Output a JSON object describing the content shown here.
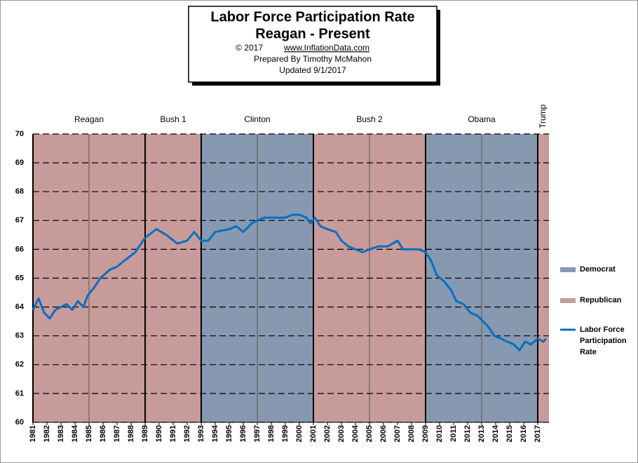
{
  "chart_data": {
    "type": "line",
    "title": "Labor Force Participation Rate",
    "subtitle": "Reagan - Present",
    "copyright": "© 2017",
    "website": "www.InflationData.com",
    "credit": "Prepared By Timothy McMahon",
    "updated": "Updated 9/1/2017",
    "presidents": [
      {
        "name": "Reagan",
        "party": "Republican",
        "start": 1981
      },
      {
        "name": "Bush 1",
        "party": "Republican",
        "start": 1989
      },
      {
        "name": "Clinton",
        "party": "Democrat",
        "start": 1993
      },
      {
        "name": "Bush 2",
        "party": "Republican",
        "start": 2001
      },
      {
        "name": "Obama",
        "party": "Democrat",
        "start": 2009
      },
      {
        "name": "Trump",
        "party": "Republican",
        "start": 2017
      }
    ],
    "term_lines": [
      1985,
      1997,
      2005,
      2013
    ],
    "parties": [
      {
        "name": "Democrat",
        "color": "#8799b0"
      },
      {
        "name": "Republican",
        "color": "#c89b9b"
      }
    ],
    "x": [
      1981.0,
      1981.4,
      1981.8,
      1982.2,
      1982.6,
      1983.0,
      1983.4,
      1983.8,
      1984.2,
      1984.6,
      1984.9,
      1985.4,
      1985.8,
      1986.5,
      1987.0,
      1987.5,
      1988.3,
      1989.0,
      1989.8,
      1990.5,
      1991.3,
      1992.0,
      1992.5,
      1993.0,
      1993.5,
      1994.0,
      1995.0,
      1995.5,
      1996.0,
      1996.6,
      1997.0,
      1997.5,
      1998.0,
      1999.0,
      1999.5,
      2000.0,
      2000.5,
      2000.8,
      2001.1,
      2001.5,
      2002.0,
      2002.6,
      2003.0,
      2003.5,
      2004.0,
      2004.5,
      2005.0,
      2005.6,
      2006.3,
      2007.0,
      2007.4,
      2008.0,
      2008.5,
      2009.0,
      2009.4,
      2009.8,
      2010.3,
      2010.8,
      2011.2,
      2011.7,
      2012.2,
      2012.7,
      2013.1,
      2013.5,
      2013.9,
      2014.4,
      2014.8,
      2015.3,
      2015.7,
      2016.1,
      2016.5,
      2017.0,
      2017.4,
      2017.6
    ],
    "series": [
      {
        "name": "Labor Force Participation Rate",
        "color": "#0070c0",
        "values": [
          63.9,
          64.3,
          63.8,
          63.6,
          63.9,
          64.0,
          64.1,
          63.9,
          64.2,
          64.0,
          64.4,
          64.7,
          65.0,
          65.3,
          65.4,
          65.6,
          65.9,
          66.4,
          66.7,
          66.5,
          66.2,
          66.3,
          66.6,
          66.3,
          66.3,
          66.6,
          66.7,
          66.8,
          66.6,
          66.9,
          67.0,
          67.1,
          67.1,
          67.1,
          67.2,
          67.2,
          67.1,
          66.9,
          67.1,
          66.8,
          66.7,
          66.6,
          66.3,
          66.1,
          66.0,
          65.9,
          66.0,
          66.1,
          66.1,
          66.3,
          66.0,
          66.0,
          66.0,
          65.9,
          65.6,
          65.1,
          64.9,
          64.6,
          64.2,
          64.1,
          63.8,
          63.7,
          63.5,
          63.3,
          63.0,
          62.9,
          62.8,
          62.7,
          62.5,
          62.8,
          62.7,
          62.9,
          62.8,
          62.9
        ]
      }
    ],
    "xlim": [
      1981,
      2017.8
    ],
    "xticks": [
      1981,
      1982,
      1983,
      1984,
      1985,
      1986,
      1987,
      1988,
      1989,
      1990,
      1991,
      1992,
      1993,
      1994,
      1995,
      1996,
      1997,
      1998,
      1999,
      2000,
      2001,
      2002,
      2003,
      2004,
      2005,
      2006,
      2007,
      2008,
      2009,
      2010,
      2011,
      2012,
      2013,
      2014,
      2015,
      2016,
      2017
    ],
    "ylim": [
      60,
      70
    ],
    "yticks": [
      60,
      61,
      62,
      63,
      64,
      65,
      66,
      67,
      68,
      69,
      70
    ],
    "grid": true
  }
}
